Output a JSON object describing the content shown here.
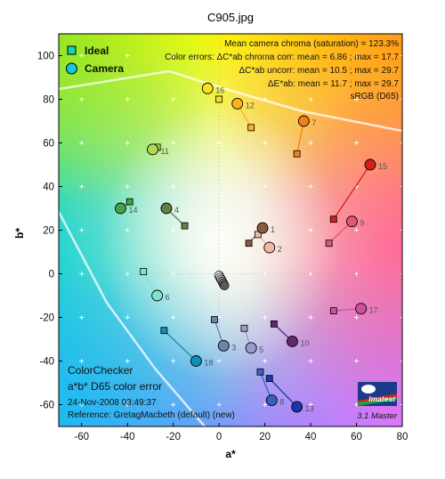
{
  "chart_data": {
    "type": "scatter",
    "title": "C905.jpg",
    "xlabel": "a*",
    "ylabel": "b*",
    "xlim": [
      -70,
      80
    ],
    "ylim": [
      -70,
      110
    ],
    "xticks": [
      -60,
      -40,
      -20,
      0,
      20,
      40,
      60,
      80
    ],
    "yticks": [
      -60,
      -40,
      -20,
      0,
      20,
      40,
      60,
      80,
      100
    ],
    "grid": true,
    "legend": {
      "position": "top-left",
      "items": [
        {
          "label": "Ideal",
          "marker": "square"
        },
        {
          "label": "Camera",
          "marker": "circle"
        }
      ]
    },
    "stats": {
      "line1": "Mean camera chroma (saturation) = 123.3%",
      "line2": "Color errors:  ΔC*ab chroma corr:  mean = 6.86 ;  max = 17.7",
      "line3": "ΔC*ab uncorr:  mean = 10.5 ;  max = 29.7",
      "line4": "ΔE*ab:  mean = 11.7 ;  max = 29.7",
      "line5": "sRGB (D65)"
    },
    "info": {
      "title1": "ColorChecker",
      "title2": "a*b* D65 color error",
      "date": "24-Nov-2008 03:49:37",
      "reference": "Reference: GretagMacbeth (default) (new)"
    },
    "logo": {
      "text": "Imatest",
      "version": "3.1  Master"
    },
    "points": [
      {
        "label": "1",
        "ideal": [
          13,
          14
        ],
        "camera": [
          19,
          21
        ],
        "color": "#8a5a44"
      },
      {
        "label": "2",
        "ideal": [
          17,
          18
        ],
        "camera": [
          22,
          12
        ],
        "color": "#f0b8a4"
      },
      {
        "label": "3",
        "ideal": [
          -2,
          -21
        ],
        "camera": [
          2,
          -33
        ],
        "color": "#6d82b0"
      },
      {
        "label": "4",
        "ideal": [
          -15,
          22
        ],
        "camera": [
          -23,
          30
        ],
        "color": "#687c45"
      },
      {
        "label": "5",
        "ideal": [
          11,
          -25
        ],
        "camera": [
          14,
          -34
        ],
        "color": "#9a9ad0"
      },
      {
        "label": "6",
        "ideal": [
          -33,
          1
        ],
        "camera": [
          -27,
          -10
        ],
        "color": "#86e0d0"
      },
      {
        "label": "7",
        "ideal": [
          34,
          55
        ],
        "camera": [
          37,
          70
        ],
        "color": "#f08018"
      },
      {
        "label": "8",
        "ideal": [
          18,
          -45
        ],
        "camera": [
          23,
          -58
        ],
        "color": "#3860c0"
      },
      {
        "label": "9",
        "ideal": [
          48,
          14
        ],
        "camera": [
          58,
          24
        ],
        "color": "#e05870"
      },
      {
        "label": "10",
        "ideal": [
          24,
          -23
        ],
        "camera": [
          32,
          -31
        ],
        "color": "#602870"
      },
      {
        "label": "11",
        "ideal": [
          -27,
          58
        ],
        "camera": [
          -29,
          57
        ],
        "color": "#b0d850"
      },
      {
        "label": "12",
        "ideal": [
          14,
          67
        ],
        "camera": [
          8,
          78
        ],
        "color": "#ffb020"
      },
      {
        "label": "13",
        "ideal": [
          22,
          -48
        ],
        "camera": [
          34,
          -61
        ],
        "color": "#1838a8"
      },
      {
        "label": "14",
        "ideal": [
          -39,
          33
        ],
        "camera": [
          -43,
          30
        ],
        "color": "#48a048"
      },
      {
        "label": "15",
        "ideal": [
          50,
          25
        ],
        "camera": [
          66,
          50
        ],
        "color": "#d02020"
      },
      {
        "label": "16",
        "ideal": [
          0,
          80
        ],
        "camera": [
          -5,
          85
        ],
        "color": "#ffe020"
      },
      {
        "label": "17",
        "ideal": [
          50,
          -17
        ],
        "camera": [
          62,
          -16
        ],
        "color": "#d050a0"
      },
      {
        "label": "18",
        "ideal": [
          -24,
          -26
        ],
        "camera": [
          -10,
          -40
        ],
        "color": "#1090b8"
      }
    ]
  }
}
